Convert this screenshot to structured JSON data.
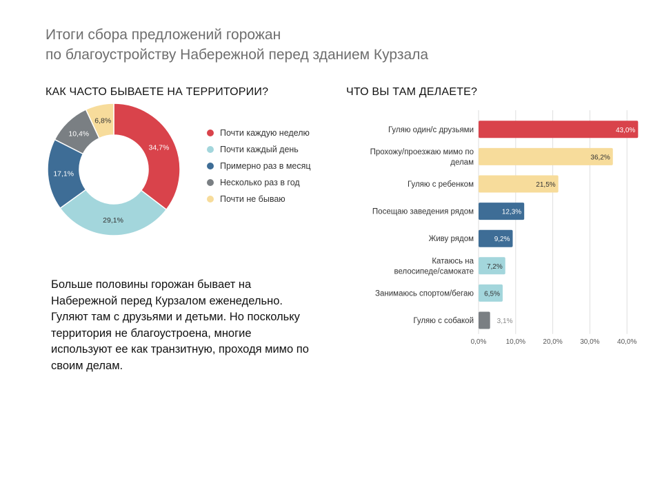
{
  "title": {
    "line1": "Итоги сбора предложений горожан",
    "line2": "по благоустройству Набережной перед зданием Курзала"
  },
  "summary": "Больше половины горожан бывает на Набережной перед Курзалом еженедельно. Гуляют там с друзьями и детьми. Но поскольку территория не благоустроена, многие используют ее как транзитную, проходя мимо по своим делам.",
  "chart_data": [
    {
      "type": "pie",
      "title": "КАК ЧАСТО БЫВАЕТЕ НА ТЕРРИТОРИИ?",
      "donut": true,
      "categories": [
        "Почти каждую неделю",
        "Почти каждый день",
        "Примерно раз в месяц",
        "Несколько раз в год",
        "Почти не бываю"
      ],
      "values": [
        34.7,
        29.1,
        17.1,
        10.4,
        6.8
      ],
      "labels": [
        "34,7%",
        "29,1%",
        "17,1%",
        "10,4%",
        "6,8%"
      ],
      "colors": [
        "#d9434b",
        "#a3d6dc",
        "#3e6d96",
        "#7a7f83",
        "#f7dc9b"
      ],
      "label_colors": [
        "#ffffff",
        "#333333",
        "#ffffff",
        "#ffffff",
        "#333333"
      ],
      "legend_position": "right"
    },
    {
      "type": "bar",
      "orientation": "horizontal",
      "title": "ЧТО ВЫ ТАМ ДЕЛАЕТЕ?",
      "categories": [
        [
          "Гуляю один/с друзьями"
        ],
        [
          "Прохожу/проезжаю мимо по",
          "делам"
        ],
        [
          "Гуляю с ребенком"
        ],
        [
          "Посещаю заведения рядом"
        ],
        [
          "Живу рядом"
        ],
        [
          "Катаюсь на",
          "велосипеде/самокате"
        ],
        [
          "Занимаюсь спортом/бегаю"
        ],
        [
          "Гуляю с собакой"
        ]
      ],
      "values": [
        43.0,
        36.2,
        21.5,
        12.3,
        9.2,
        7.2,
        6.5,
        3.1
      ],
      "labels": [
        "43,0%",
        "36,2%",
        "21,5%",
        "12,3%",
        "9,2%",
        "7,2%",
        "6,5%",
        "3,1%"
      ],
      "colors": [
        "#d9434b",
        "#f7dc9b",
        "#f7dc9b",
        "#3e6d96",
        "#3e6d96",
        "#a3d6dc",
        "#a3d6dc",
        "#7a7f83"
      ],
      "label_colors": [
        "#ffffff",
        "#333333",
        "#333333",
        "#ffffff",
        "#ffffff",
        "#333333",
        "#333333",
        "#888888"
      ],
      "xlim": [
        0,
        42
      ],
      "xticks": [
        0,
        10,
        20,
        30,
        40
      ],
      "xtick_labels": [
        "0,0%",
        "10,0%",
        "20,0%",
        "30,0%",
        "40,0%"
      ],
      "grid": true
    }
  ]
}
